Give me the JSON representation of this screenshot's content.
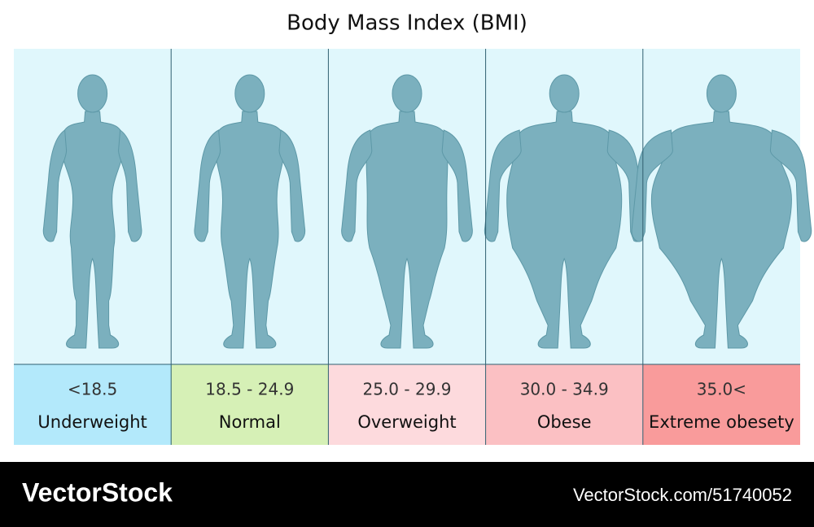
{
  "title": "Body Mass Index (BMI)",
  "panels": [
    {
      "range": "<18.5",
      "label": "Underweight"
    },
    {
      "range": "18.5 - 24.9",
      "label": "Normal"
    },
    {
      "range": "25.0 - 29.9",
      "label": "Overweight"
    },
    {
      "range": "30.0 - 34.9",
      "label": "Obese"
    },
    {
      "range": "35.0<",
      "label": "Extreme obesety"
    }
  ],
  "footer": {
    "brand": "VectorStock",
    "id": "VectorStock.com/51740052"
  }
}
